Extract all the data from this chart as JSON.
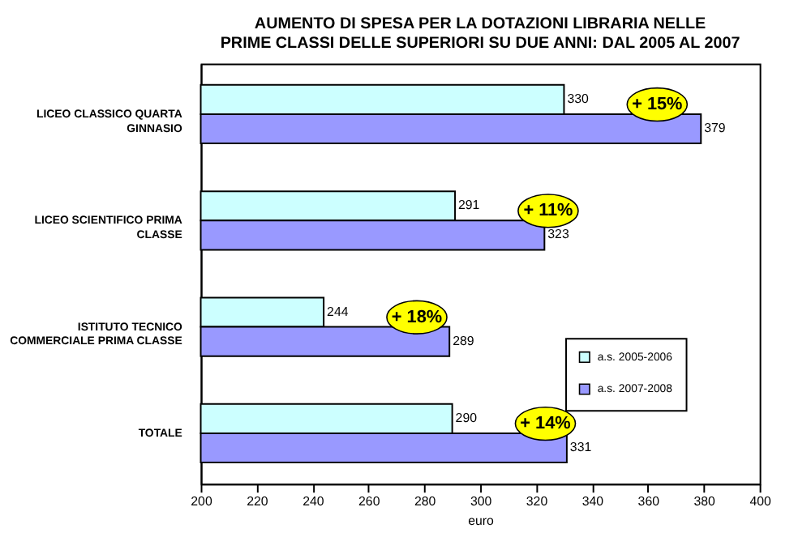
{
  "chart_data": {
    "type": "bar",
    "orientation": "horizontal",
    "title": [
      "AUMENTO DI SPESA PER LA DOTAZIONI LIBRARIA NELLE",
      "PRIME CLASSI DELLE SUPERIORI SU DUE ANNI: DAL 2005 AL 2007"
    ],
    "categories": [
      "LICEO CLASSICO QUARTA GINNASIO",
      "LICEO SCIENTIFICO PRIMA CLASSE",
      "ISTITUTO TECNICO COMMERCIALE PRIMA CLASSE",
      "TOTALE"
    ],
    "series": [
      {
        "name": "a.s. 2005-2006",
        "color": "#ccffff",
        "values": [
          330,
          291,
          244,
          290
        ]
      },
      {
        "name": "a.s. 2007-2008",
        "color": "#9999ff",
        "values": [
          379,
          323,
          289,
          331
        ]
      }
    ],
    "xlabel": "euro",
    "xlim": [
      200,
      400
    ],
    "xticks": [
      200,
      220,
      240,
      260,
      280,
      300,
      320,
      340,
      360,
      380,
      400
    ],
    "data_labels": true,
    "legend": "bottom right",
    "grid": false,
    "annotations": [
      "+ 15%",
      "+ 11%",
      "+ 18%",
      "+ 14%"
    ]
  }
}
